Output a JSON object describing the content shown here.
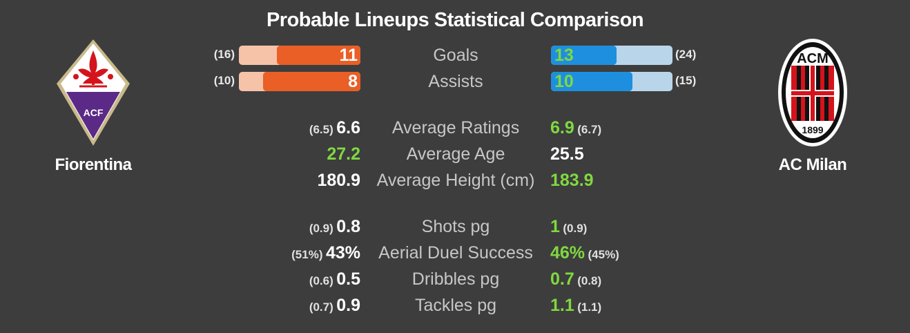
{
  "title": "Probable Lineups Statistical Comparison",
  "home": {
    "name": "Fiorentina",
    "crest_icon": "fiorentina-crest-icon",
    "crest_text": "ACF",
    "color": "#ea5f26",
    "color_light": "#f6c3a9"
  },
  "away": {
    "name": "AC Milan",
    "crest_icon": "ac-milan-crest-icon",
    "crest_text_top": "ACM",
    "crest_text_bottom": "1899",
    "color": "#1e8fde",
    "color_light": "#b9d5ea"
  },
  "highlight_color": "#80d840",
  "bars": [
    {
      "label": "Goals",
      "home_value": "11",
      "home_paren": "(16)",
      "home_fraction": 0.69,
      "away_value": "13",
      "away_paren": "(24)",
      "away_fraction": 0.54
    },
    {
      "label": "Assists",
      "home_value": "8",
      "home_paren": "(10)",
      "home_fraction": 0.8,
      "away_value": "10",
      "away_paren": "(15)",
      "away_fraction": 0.67
    }
  ],
  "stats": [
    {
      "label": "Average Ratings",
      "home_value": "6.6",
      "home_sub": "(6.5)",
      "away_value": "6.9",
      "away_sub": "(6.7)",
      "better": "away"
    },
    {
      "label": "Average Age",
      "home_value": "27.2",
      "home_sub": "",
      "away_value": "25.5",
      "away_sub": "",
      "better": "home"
    },
    {
      "label": "Average Height (cm)",
      "home_value": "180.9",
      "home_sub": "",
      "away_value": "183.9",
      "away_sub": "",
      "better": "away"
    },
    {
      "label": "Shots pg",
      "home_value": "0.8",
      "home_sub": "(0.9)",
      "away_value": "1",
      "away_sub": "(0.9)",
      "better": "away"
    },
    {
      "label": "Aerial Duel Success",
      "home_value": "43%",
      "home_sub": "(51%)",
      "away_value": "46%",
      "away_sub": "(45%)",
      "better": "away"
    },
    {
      "label": "Dribbles pg",
      "home_value": "0.5",
      "home_sub": "(0.6)",
      "away_value": "0.7",
      "away_sub": "(0.8)",
      "better": "away"
    },
    {
      "label": "Tackles pg",
      "home_value": "0.9",
      "home_sub": "(0.7)",
      "away_value": "1.1",
      "away_sub": "(1.1)",
      "better": "away"
    }
  ]
}
